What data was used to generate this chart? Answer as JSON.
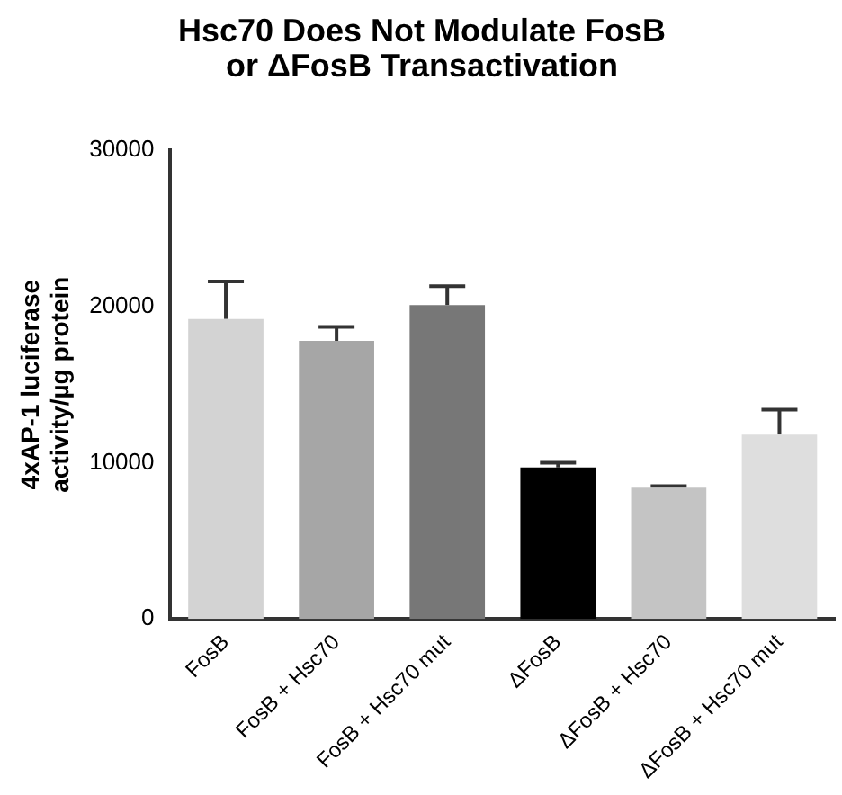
{
  "chart_data": {
    "type": "bar",
    "title": "Hsc70 Does Not Modulate FosB\nor ΔFosB Transactivation",
    "ylabel": "4xAP-1 luciferase\nactivity/µg protein",
    "categories": [
      "FosB",
      "FosB + Hsc70",
      "FosB + Hsc70 mut",
      "ΔFosB",
      "ΔFosB + Hsc70",
      "ΔFosB + Hsc70 mut"
    ],
    "values": [
      19200,
      17800,
      20100,
      9700,
      8400,
      11800
    ],
    "colors": [
      "#d3d3d3",
      "#a6a6a6",
      "#777777",
      "#000000",
      "#c4c4c4",
      "#dedede"
    ],
    "errors": [
      [
        19200,
        21600
      ],
      [
        17800,
        18700
      ],
      [
        20100,
        21300
      ],
      [
        9700,
        10000
      ],
      [
        8400,
        8500
      ],
      [
        11800,
        13400
      ]
    ],
    "ylim": [
      0,
      30000
    ],
    "yticks": [
      0,
      10000,
      20000,
      30000
    ],
    "grid": false,
    "legend": false
  }
}
